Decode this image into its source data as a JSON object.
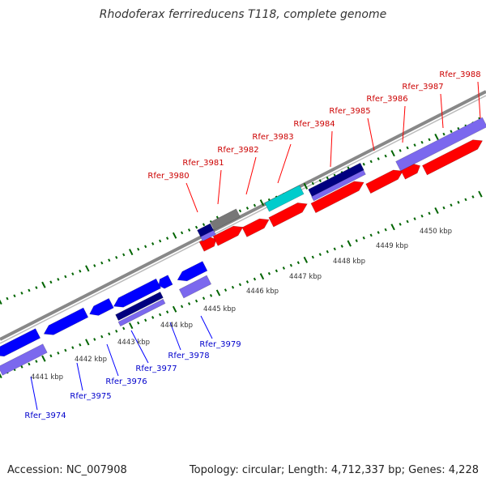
{
  "title": "Rhodoferax ferrireducens T118, complete genome",
  "footer": {
    "accession": "Accession: NC_007908",
    "summary": "Topology: circular; Length: 4,712,337 bp; Genes: 4,228"
  },
  "ruler": {
    "unit": "kbp",
    "ticks": [
      "4441 kbp",
      "4442 kbp",
      "4443 kbp",
      "4444 kbp",
      "4445 kbp",
      "4446 kbp",
      "4447 kbp",
      "4448 kbp",
      "4449 kbp",
      "4450 kbp"
    ]
  },
  "colors": {
    "forward_cds": "#ff0000",
    "reverse_cds": "#0000ff",
    "forward_label": "#cc0000",
    "reverse_label": "#0000cc",
    "cyan_feature": "#00cccc",
    "gray_feature": "#777777",
    "navy_feature": "#000080",
    "lavender_feature": "#7b68ee",
    "backbone": "#888888",
    "tick": "#006400"
  },
  "genes_forward": [
    {
      "label": "Rfer_3980"
    },
    {
      "label": "Rfer_3981"
    },
    {
      "label": "Rfer_3982"
    },
    {
      "label": "Rfer_3983"
    },
    {
      "label": "Rfer_3984"
    },
    {
      "label": "Rfer_3985"
    },
    {
      "label": "Rfer_3986"
    },
    {
      "label": "Rfer_3987"
    },
    {
      "label": "Rfer_3988"
    }
  ],
  "genes_reverse": [
    {
      "label": "Rfer_3974"
    },
    {
      "label": "Rfer_3975"
    },
    {
      "label": "Rfer_3976"
    },
    {
      "label": "Rfer_3977"
    },
    {
      "label": "Rfer_3978"
    },
    {
      "label": "Rfer_3979"
    }
  ]
}
